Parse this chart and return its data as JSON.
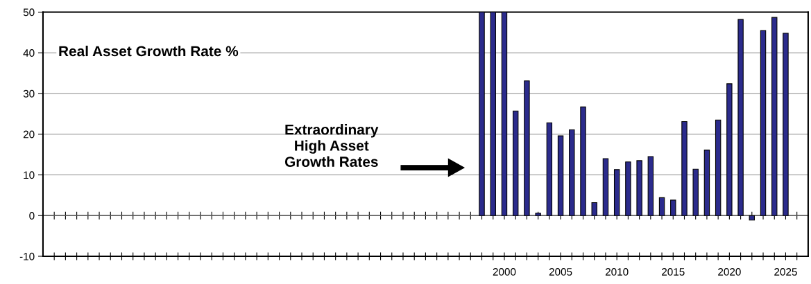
{
  "chart_data": {
    "type": "bar",
    "x": [
      1998,
      1999,
      2000,
      2001,
      2002,
      2003,
      2004,
      2005,
      2006,
      2007,
      2008,
      2009,
      2010,
      2011,
      2012,
      2013,
      2014,
      2015,
      2016,
      2017,
      2018,
      2019,
      2020,
      2021,
      2022,
      2023,
      2024,
      2025
    ],
    "values": [
      50,
      50,
      50,
      25.7,
      33.1,
      0.6,
      22.8,
      19.6,
      21.1,
      26.7,
      3.2,
      14.0,
      11.3,
      13.2,
      13.5,
      14.5,
      4.4,
      3.8,
      23.1,
      11.4,
      16.1,
      23.5,
      32.4,
      48.2,
      -1.1,
      45.5,
      48.7,
      44.8
    ],
    "color": "#2b2b8c",
    "xlim": [
      1959,
      2027
    ],
    "xticks": [
      {
        "value": 1960,
        "label": null
      },
      {
        "value": 1961,
        "label": null
      },
      {
        "value": 1962,
        "label": null
      },
      {
        "value": 1963,
        "label": null
      },
      {
        "value": 1964,
        "label": null
      },
      {
        "value": 1965,
        "label": null
      },
      {
        "value": 1966,
        "label": null
      },
      {
        "value": 1967,
        "label": null
      },
      {
        "value": 1968,
        "label": null
      },
      {
        "value": 1969,
        "label": null
      },
      {
        "value": 1970,
        "label": null
      },
      {
        "value": 1971,
        "label": null
      },
      {
        "value": 1972,
        "label": null
      },
      {
        "value": 1973,
        "label": null
      },
      {
        "value": 1974,
        "label": null
      },
      {
        "value": 1975,
        "label": null
      },
      {
        "value": 1976,
        "label": null
      },
      {
        "value": 1977,
        "label": null
      },
      {
        "value": 1978,
        "label": null
      },
      {
        "value": 1979,
        "label": null
      },
      {
        "value": 1980,
        "label": null
      },
      {
        "value": 1981,
        "label": null
      },
      {
        "value": 1982,
        "label": null
      },
      {
        "value": 1983,
        "label": null
      },
      {
        "value": 1984,
        "label": null
      },
      {
        "value": 1985,
        "label": null
      },
      {
        "value": 1986,
        "label": null
      },
      {
        "value": 1987,
        "label": null
      },
      {
        "value": 1988,
        "label": null
      },
      {
        "value": 1989,
        "label": null
      },
      {
        "value": 1990,
        "label": null
      },
      {
        "value": 1991,
        "label": null
      },
      {
        "value": 1992,
        "label": null
      },
      {
        "value": 1993,
        "label": null
      },
      {
        "value": 1994,
        "label": null
      },
      {
        "value": 1995,
        "label": null
      },
      {
        "value": 1996,
        "label": null
      },
      {
        "value": 1997,
        "label": null
      },
      {
        "value": 1998,
        "label": null
      },
      {
        "value": 1999,
        "label": null
      },
      2000,
      {
        "value": 2001,
        "label": null
      },
      {
        "value": 2002,
        "label": null
      },
      {
        "value": 2003,
        "label": null
      },
      {
        "value": 2004,
        "label": null
      },
      2005,
      {
        "value": 2006,
        "label": null
      },
      {
        "value": 2007,
        "label": null
      },
      {
        "value": 2008,
        "label": null
      },
      {
        "value": 2009,
        "label": null
      },
      2010,
      {
        "value": 2011,
        "label": null
      },
      {
        "value": 2012,
        "label": null
      },
      {
        "value": 2013,
        "label": null
      },
      {
        "value": 2014,
        "label": null
      },
      2015,
      {
        "value": 2016,
        "label": null
      },
      {
        "value": 2017,
        "label": null
      },
      {
        "value": 2018,
        "label": null
      },
      {
        "value": 2019,
        "label": null
      },
      2020,
      {
        "value": 2021,
        "label": null
      },
      {
        "value": 2022,
        "label": null
      },
      {
        "value": 2023,
        "label": null
      },
      {
        "value": 2024,
        "label": null
      },
      2025,
      {
        "value": 2026,
        "label": null
      }
    ],
    "ylim": [
      -10,
      50
    ],
    "yticks": [
      -10,
      0,
      10,
      20,
      30,
      40,
      50
    ],
    "grid": "y",
    "annotations": [
      "Real Asset Growth Rate %",
      "Extraordinary\nHigh Asset\nGrowth Rates"
    ]
  }
}
